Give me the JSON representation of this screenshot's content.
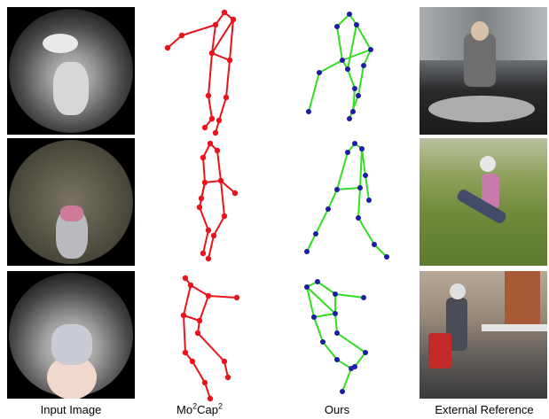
{
  "captions": {
    "input": "Input Image",
    "mo2cap_base": "Mo",
    "mo2cap_sup1": "2",
    "mo2cap_mid": "Cap",
    "mo2cap_sup2": "2",
    "ours": "Ours",
    "external": "External Reference"
  },
  "colors": {
    "mo2cap_skeleton": "#e8141c",
    "ours_bone": "#33dd22",
    "ours_joint": "#1c1ca8"
  },
  "rows": [
    {
      "input_scene": "indoor-sofa-fisheye",
      "reference_scene": "person-sitting-on-sofa"
    },
    {
      "input_scene": "outdoor-grass-fisheye",
      "reference_scene": "person-lunging-on-grass"
    },
    {
      "input_scene": "indoor-office-fisheye",
      "reference_scene": "person-sitting-at-desk"
    }
  ]
}
